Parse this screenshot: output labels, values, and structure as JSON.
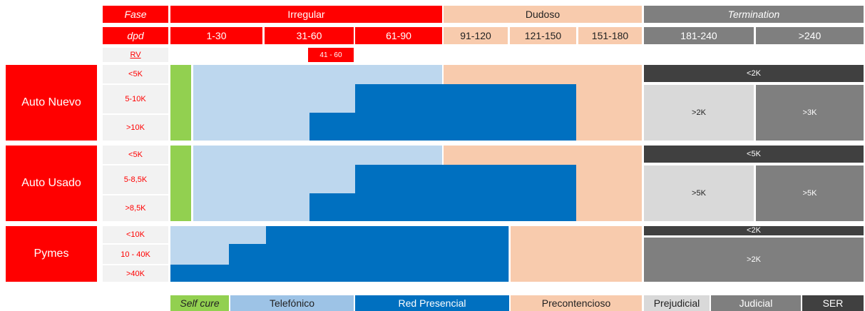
{
  "header": {
    "phase_label": "Fase",
    "dpd_label": "dpd",
    "rv_label": "RV",
    "phases": {
      "irregular": "Irregular",
      "dudoso": "Dudoso",
      "termination": "Termination"
    },
    "dpd_ranges": [
      "1-30",
      "31-60",
      "61-90",
      "91-120",
      "121-150",
      "151-180",
      "181-240",
      ">240"
    ],
    "rv_tag": "41 - 60"
  },
  "groups": [
    {
      "name": "Auto Nuevo",
      "bands": [
        "<5K",
        "5-10K",
        ">10K"
      ],
      "term_top": "<2K",
      "term_left": ">2K",
      "term_right": ">3K"
    },
    {
      "name": "Auto Usado",
      "bands": [
        "<5K",
        "5-8,5K",
        ">8,5K"
      ],
      "term_top": "<5K",
      "term_left": ">5K",
      "term_right": ">5K"
    },
    {
      "name": "Pymes",
      "bands": [
        "<10K",
        "10 - 40K",
        ">40K"
      ],
      "term_top": "<2K",
      "term_full": ">2K"
    }
  ],
  "legend": [
    "Self cure",
    "Telefónico",
    "Red Presencial",
    "Precontencioso",
    "Prejudicial",
    "Judicial",
    "SER"
  ],
  "colors": {
    "red": "#ff0000",
    "self_cure": "#92d050",
    "telefonico": "#bdd7ee",
    "red_presencial": "#0070c0",
    "precontencioso": "#f8cbad",
    "prejudicial": "#d9d9d9",
    "judicial": "#7f7f7f",
    "ser": "#404040"
  }
}
